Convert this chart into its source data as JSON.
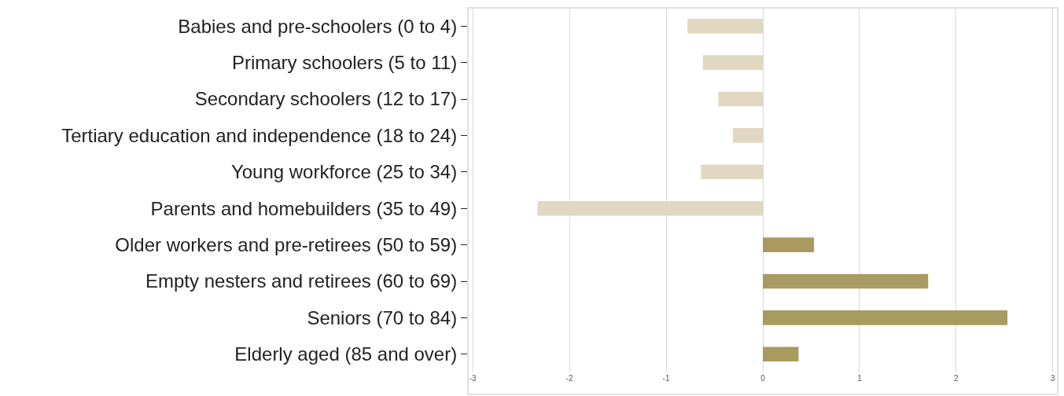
{
  "chart_data": {
    "type": "bar",
    "orientation": "horizontal",
    "categories": [
      "Babies and pre-schoolers (0 to 4)",
      "Primary schoolers (5 to 11)",
      "Secondary schoolers (12 to 17)",
      "Tertiary education and independence (18 to 24)",
      "Young workforce (25 to 34)",
      "Parents and homebuilders (35 to 49)",
      "Older workers and pre-retirees (50 to 59)",
      "Empty nesters and retirees (60 to 69)",
      "Seniors (70 to 84)",
      "Elderly aged (85 and over)"
    ],
    "values": [
      -0.78,
      -0.62,
      -0.46,
      -0.31,
      -0.64,
      -2.33,
      0.53,
      1.71,
      2.53,
      0.37
    ],
    "colors": [
      "#e2d8c2",
      "#e2d8c2",
      "#e2d8c2",
      "#e2d8c2",
      "#e2d8c2",
      "#e2d8c2",
      "#a99a5f",
      "#a99a5f",
      "#a99a5f",
      "#a99a5f"
    ],
    "xlim": [
      -3.05,
      3.05
    ],
    "xticks": [
      -3,
      -2,
      -1,
      0,
      1,
      2,
      3
    ],
    "grid": "x"
  }
}
